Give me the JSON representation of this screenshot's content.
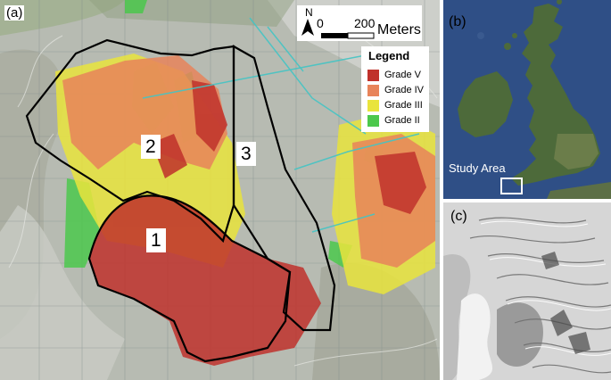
{
  "panels": {
    "a": {
      "label": "(a)",
      "zones": [
        "1",
        "2",
        "3"
      ],
      "scale_bar": {
        "start": "0",
        "end": "200",
        "unit": "Meters",
        "north": "N"
      },
      "legend": {
        "title": "Legend",
        "items": [
          {
            "label": "Grade V",
            "color": "#c0312b"
          },
          {
            "label": "Grade IV",
            "color": "#e8845a"
          },
          {
            "label": "Grade III",
            "color": "#e9e43c"
          },
          {
            "label": "Grade II",
            "color": "#4cc84c"
          }
        ]
      }
    },
    "b": {
      "label": "(b)",
      "study_area": "Study Area"
    },
    "c": {
      "label": "(c)"
    }
  },
  "colors": {
    "boundary": "#000000",
    "sea": "#2f4f86",
    "land": "#4d6a3a",
    "aerial": "#b9bdb4"
  }
}
